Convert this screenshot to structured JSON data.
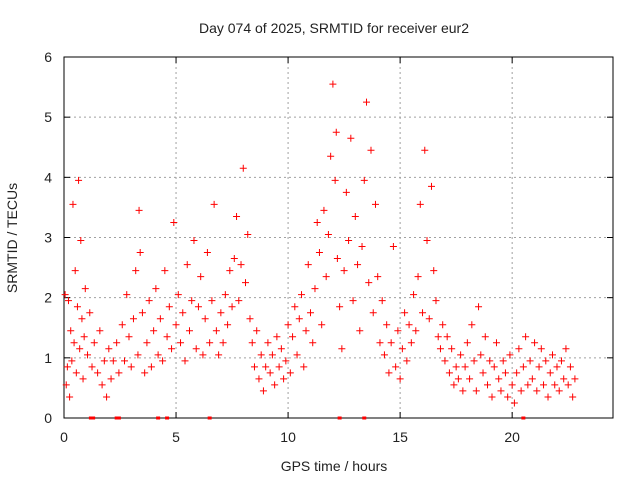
{
  "chart_data": {
    "type": "scatter",
    "title": "Day 074 of 2025, SRMTID for receiver eur2",
    "xlabel": "GPS time / hours",
    "ylabel": "SRMTID / TECUs",
    "xlim": [
      0,
      24.5
    ],
    "ylim": [
      0,
      6
    ],
    "xticks": [
      0,
      5,
      10,
      15,
      20
    ],
    "xtick_labels": [
      "0",
      "5",
      "10",
      "15",
      "20"
    ],
    "yticks": [
      0,
      1,
      2,
      3,
      4,
      5,
      6
    ],
    "ytick_labels": [
      "0",
      "1",
      "2",
      "3",
      "4",
      "5",
      "6"
    ],
    "grid": true,
    "marker": "+",
    "series_color": "#ff0000",
    "series": [
      {
        "name": "SRMTID",
        "points": [
          [
            0.05,
            2.05
          ],
          [
            0.1,
            0.55
          ],
          [
            0.15,
            0.85
          ],
          [
            0.2,
            1.95
          ],
          [
            0.25,
            0.35
          ],
          [
            0.3,
            1.45
          ],
          [
            0.35,
            0.95
          ],
          [
            0.4,
            3.55
          ],
          [
            0.45,
            1.25
          ],
          [
            0.5,
            2.45
          ],
          [
            0.55,
            0.75
          ],
          [
            0.6,
            1.85
          ],
          [
            0.65,
            3.95
          ],
          [
            0.7,
            1.15
          ],
          [
            0.75,
            2.95
          ],
          [
            0.8,
            1.65
          ],
          [
            0.85,
            0.65
          ],
          [
            0.9,
            1.35
          ],
          [
            0.95,
            2.15
          ],
          [
            1.05,
            1.05
          ],
          [
            1.15,
            1.75
          ],
          [
            1.25,
            0.85
          ],
          [
            1.35,
            1.25
          ],
          [
            1.5,
            0.75
          ],
          [
            1.6,
            1.45
          ],
          [
            1.7,
            0.55
          ],
          [
            1.8,
            0.95
          ],
          [
            1.9,
            0.35
          ],
          [
            2.0,
            1.15
          ],
          [
            2.1,
            0.65
          ],
          [
            2.2,
            0.95
          ],
          [
            2.35,
            1.25
          ],
          [
            2.45,
            0.75
          ],
          [
            2.6,
            1.55
          ],
          [
            2.7,
            0.95
          ],
          [
            2.8,
            2.05
          ],
          [
            2.9,
            1.35
          ],
          [
            3.0,
            0.85
          ],
          [
            3.1,
            1.65
          ],
          [
            3.2,
            2.45
          ],
          [
            3.3,
            1.05
          ],
          [
            3.35,
            3.45
          ],
          [
            3.4,
            2.75
          ],
          [
            3.5,
            1.75
          ],
          [
            3.6,
            0.75
          ],
          [
            3.7,
            1.25
          ],
          [
            3.8,
            1.95
          ],
          [
            3.9,
            0.85
          ],
          [
            4.0,
            1.45
          ],
          [
            4.1,
            2.15
          ],
          [
            4.2,
            1.05
          ],
          [
            4.3,
            1.65
          ],
          [
            4.4,
            0.95
          ],
          [
            4.5,
            2.45
          ],
          [
            4.6,
            1.35
          ],
          [
            4.7,
            1.85
          ],
          [
            4.8,
            1.15
          ],
          [
            4.9,
            3.25
          ],
          [
            5.0,
            1.55
          ],
          [
            5.1,
            2.05
          ],
          [
            5.2,
            1.25
          ],
          [
            5.3,
            1.75
          ],
          [
            5.4,
            0.95
          ],
          [
            5.5,
            2.55
          ],
          [
            5.6,
            1.45
          ],
          [
            5.7,
            1.95
          ],
          [
            5.8,
            2.95
          ],
          [
            5.9,
            1.15
          ],
          [
            6.0,
            1.85
          ],
          [
            6.1,
            2.35
          ],
          [
            6.2,
            1.05
          ],
          [
            6.3,
            1.65
          ],
          [
            6.4,
            2.75
          ],
          [
            6.5,
            1.25
          ],
          [
            6.6,
            1.95
          ],
          [
            6.7,
            3.55
          ],
          [
            6.8,
            1.45
          ],
          [
            6.9,
            1.05
          ],
          [
            7.0,
            1.75
          ],
          [
            7.1,
            1.25
          ],
          [
            7.2,
            2.05
          ],
          [
            7.3,
            1.55
          ],
          [
            7.4,
            2.45
          ],
          [
            7.5,
            1.85
          ],
          [
            7.6,
            2.65
          ],
          [
            7.7,
            3.35
          ],
          [
            7.8,
            1.95
          ],
          [
            7.9,
            2.55
          ],
          [
            8.0,
            4.15
          ],
          [
            8.1,
            2.25
          ],
          [
            8.2,
            3.05
          ],
          [
            8.3,
            1.65
          ],
          [
            8.4,
            1.25
          ],
          [
            8.5,
            0.85
          ],
          [
            8.6,
            1.45
          ],
          [
            8.7,
            0.65
          ],
          [
            8.8,
            1.05
          ],
          [
            8.9,
            0.45
          ],
          [
            9.0,
            0.85
          ],
          [
            9.1,
            1.25
          ],
          [
            9.2,
            0.75
          ],
          [
            9.3,
            1.05
          ],
          [
            9.4,
            0.55
          ],
          [
            9.5,
            1.35
          ],
          [
            9.6,
            0.85
          ],
          [
            9.7,
            1.15
          ],
          [
            9.8,
            0.65
          ],
          [
            9.9,
            0.95
          ],
          [
            10.0,
            1.55
          ],
          [
            10.1,
            0.75
          ],
          [
            10.2,
            1.35
          ],
          [
            10.3,
            1.85
          ],
          [
            10.4,
            1.05
          ],
          [
            10.5,
            1.65
          ],
          [
            10.6,
            2.05
          ],
          [
            10.7,
            0.85
          ],
          [
            10.8,
            1.45
          ],
          [
            10.9,
            2.55
          ],
          [
            11.0,
            1.75
          ],
          [
            11.1,
            1.25
          ],
          [
            11.2,
            2.15
          ],
          [
            11.3,
            3.25
          ],
          [
            11.4,
            2.75
          ],
          [
            11.5,
            1.55
          ],
          [
            11.6,
            3.45
          ],
          [
            11.7,
            2.35
          ],
          [
            11.8,
            3.05
          ],
          [
            11.9,
            4.35
          ],
          [
            12.0,
            5.55
          ],
          [
            12.1,
            3.95
          ],
          [
            12.15,
            4.75
          ],
          [
            12.2,
            2.65
          ],
          [
            12.3,
            1.85
          ],
          [
            12.4,
            1.15
          ],
          [
            12.5,
            2.45
          ],
          [
            12.6,
            3.75
          ],
          [
            12.7,
            2.95
          ],
          [
            12.8,
            4.65
          ],
          [
            12.9,
            1.95
          ],
          [
            13.0,
            3.35
          ],
          [
            13.1,
            2.55
          ],
          [
            13.2,
            1.45
          ],
          [
            13.3,
            2.85
          ],
          [
            13.4,
            3.95
          ],
          [
            13.5,
            5.25
          ],
          [
            13.6,
            2.25
          ],
          [
            13.7,
            4.45
          ],
          [
            13.8,
            1.75
          ],
          [
            13.9,
            3.55
          ],
          [
            14.0,
            2.35
          ],
          [
            14.1,
            1.25
          ],
          [
            14.2,
            1.95
          ],
          [
            14.3,
            1.05
          ],
          [
            14.4,
            1.55
          ],
          [
            14.5,
            0.75
          ],
          [
            14.6,
            1.25
          ],
          [
            14.7,
            2.85
          ],
          [
            14.8,
            0.85
          ],
          [
            14.9,
            1.45
          ],
          [
            15.0,
            0.65
          ],
          [
            15.1,
            1.15
          ],
          [
            15.2,
            1.75
          ],
          [
            15.3,
            0.95
          ],
          [
            15.4,
            1.55
          ],
          [
            15.5,
            1.25
          ],
          [
            15.6,
            2.05
          ],
          [
            15.7,
            1.45
          ],
          [
            15.8,
            2.35
          ],
          [
            15.9,
            3.55
          ],
          [
            16.0,
            1.75
          ],
          [
            16.1,
            4.45
          ],
          [
            16.2,
            2.95
          ],
          [
            16.3,
            1.65
          ],
          [
            16.4,
            3.85
          ],
          [
            16.5,
            2.45
          ],
          [
            16.6,
            1.95
          ],
          [
            16.7,
            1.35
          ],
          [
            16.8,
            1.15
          ],
          [
            16.9,
            1.55
          ],
          [
            17.0,
            0.95
          ],
          [
            17.1,
            1.35
          ],
          [
            17.2,
            0.75
          ],
          [
            17.3,
            1.15
          ],
          [
            17.4,
            0.55
          ],
          [
            17.5,
            0.85
          ],
          [
            17.6,
            0.65
          ],
          [
            17.7,
            1.05
          ],
          [
            17.8,
            0.45
          ],
          [
            17.9,
            0.85
          ],
          [
            18.0,
            1.25
          ],
          [
            18.1,
            0.65
          ],
          [
            18.2,
            1.55
          ],
          [
            18.3,
            0.95
          ],
          [
            18.4,
            0.45
          ],
          [
            18.5,
            1.85
          ],
          [
            18.6,
            1.05
          ],
          [
            18.7,
            0.75
          ],
          [
            18.8,
            1.35
          ],
          [
            18.9,
            0.55
          ],
          [
            19.0,
            0.95
          ],
          [
            19.1,
            0.35
          ],
          [
            19.2,
            0.85
          ],
          [
            19.3,
            1.25
          ],
          [
            19.4,
            0.65
          ],
          [
            19.5,
            0.45
          ],
          [
            19.6,
            0.95
          ],
          [
            19.7,
            0.75
          ],
          [
            19.8,
            0.35
          ],
          [
            19.9,
            1.05
          ],
          [
            20.0,
            0.55
          ],
          [
            20.1,
            0.25
          ],
          [
            20.2,
            0.75
          ],
          [
            20.3,
            1.15
          ],
          [
            20.4,
            0.45
          ],
          [
            20.5,
            0.85
          ],
          [
            20.6,
            1.35
          ],
          [
            20.7,
            0.55
          ],
          [
            20.8,
            0.95
          ],
          [
            20.9,
            0.65
          ],
          [
            21.0,
            1.25
          ],
          [
            21.1,
            0.45
          ],
          [
            21.2,
            0.85
          ],
          [
            21.3,
            1.15
          ],
          [
            21.4,
            0.55
          ],
          [
            21.5,
            0.95
          ],
          [
            21.6,
            0.35
          ],
          [
            21.7,
            0.75
          ],
          [
            21.8,
            1.05
          ],
          [
            21.9,
            0.55
          ],
          [
            22.0,
            0.85
          ],
          [
            22.1,
            0.45
          ],
          [
            22.2,
            0.95
          ],
          [
            22.3,
            0.65
          ],
          [
            22.4,
            1.15
          ],
          [
            22.5,
            0.55
          ],
          [
            22.6,
            0.85
          ],
          [
            22.7,
            0.35
          ],
          [
            22.8,
            0.65
          ]
        ]
      }
    ],
    "gaps_x": [
      1.2,
      1.3,
      2.35,
      2.45,
      4.2,
      4.6,
      6.5,
      12.3,
      13.4,
      20.5
    ]
  }
}
